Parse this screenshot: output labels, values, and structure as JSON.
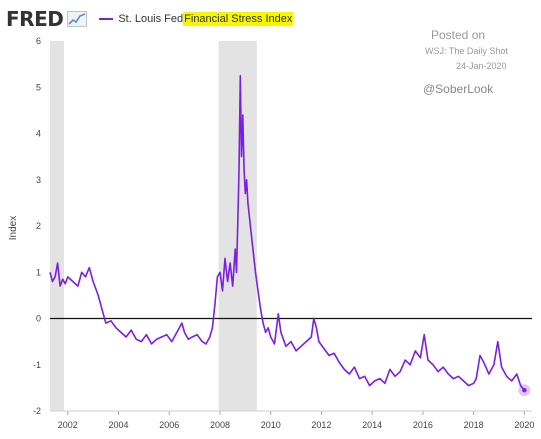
{
  "header": {
    "logo_text": "FRED",
    "logo_icon": "line-chart-icon",
    "legend_prefix": "St. Louis Fed ",
    "legend_highlight": "Financial Stress Index",
    "series_color": "#7b1fe0",
    "highlight_color": "#f7f700"
  },
  "annotations": {
    "posted": "Posted on",
    "source": "WSJ: The Daily Shot",
    "date": "24-Jan-2020",
    "handle": "@SoberLook"
  },
  "chart_data": {
    "type": "line",
    "title": "",
    "xlabel": "",
    "ylabel": "Index",
    "xlim": [
      2001.3,
      2020.3
    ],
    "ylim": [
      -2,
      6
    ],
    "xticks": [
      "2002",
      "2004",
      "2006",
      "2008",
      "2010",
      "2012",
      "2014",
      "2016",
      "2018",
      "2020"
    ],
    "yticks": [
      "-2",
      "-1",
      "0",
      "1",
      "2",
      "3",
      "4",
      "5",
      "6"
    ],
    "recessions": [
      [
        2001.3,
        2001.85
      ],
      [
        2007.95,
        2009.45
      ]
    ],
    "zero_line": 0,
    "grid": false,
    "series": [
      {
        "name": "St. Louis Fed Financial Stress Index",
        "color": "#7b1fe0",
        "x": [
          2001.3,
          2001.4,
          2001.5,
          2001.6,
          2001.7,
          2001.8,
          2001.9,
          2002.0,
          2002.2,
          2002.4,
          2002.55,
          2002.7,
          2002.85,
          2003.0,
          2003.2,
          2003.35,
          2003.5,
          2003.7,
          2003.9,
          2004.1,
          2004.3,
          2004.5,
          2004.7,
          2004.9,
          2005.1,
          2005.3,
          2005.5,
          2005.7,
          2005.9,
          2006.1,
          2006.3,
          2006.5,
          2006.6,
          2006.75,
          2006.9,
          2007.1,
          2007.3,
          2007.45,
          2007.6,
          2007.7,
          2007.8,
          2007.9,
          2008.0,
          2008.1,
          2008.2,
          2008.3,
          2008.4,
          2008.5,
          2008.6,
          2008.65,
          2008.7,
          2008.75,
          2008.8,
          2008.85,
          2008.9,
          2008.95,
          2009.0,
          2009.05,
          2009.1,
          2009.2,
          2009.3,
          2009.4,
          2009.5,
          2009.6,
          2009.7,
          2009.8,
          2009.9,
          2010.0,
          2010.15,
          2010.3,
          2010.4,
          2010.5,
          2010.6,
          2010.8,
          2011.0,
          2011.2,
          2011.4,
          2011.6,
          2011.7,
          2011.8,
          2011.9,
          2012.1,
          2012.3,
          2012.5,
          2012.7,
          2012.9,
          2013.1,
          2013.3,
          2013.5,
          2013.7,
          2013.9,
          2014.1,
          2014.3,
          2014.5,
          2014.7,
          2014.9,
          2015.1,
          2015.3,
          2015.5,
          2015.7,
          2015.9,
          2016.05,
          2016.2,
          2016.4,
          2016.6,
          2016.8,
          2017.0,
          2017.2,
          2017.4,
          2017.6,
          2017.8,
          2018.0,
          2018.1,
          2018.25,
          2018.4,
          2018.6,
          2018.8,
          2018.95,
          2019.1,
          2019.3,
          2019.5,
          2019.7,
          2019.85,
          2020.0
        ],
        "y": [
          1.0,
          0.8,
          0.9,
          1.2,
          0.7,
          0.85,
          0.75,
          0.9,
          0.8,
          0.7,
          1.0,
          0.9,
          1.1,
          0.8,
          0.5,
          0.2,
          -0.1,
          -0.05,
          -0.2,
          -0.3,
          -0.4,
          -0.25,
          -0.45,
          -0.5,
          -0.35,
          -0.55,
          -0.45,
          -0.4,
          -0.35,
          -0.5,
          -0.3,
          -0.1,
          -0.3,
          -0.45,
          -0.4,
          -0.35,
          -0.5,
          -0.55,
          -0.4,
          -0.2,
          0.3,
          0.9,
          1.0,
          0.6,
          1.3,
          0.8,
          1.2,
          0.7,
          1.5,
          1.0,
          2.0,
          3.2,
          5.25,
          3.5,
          4.4,
          3.2,
          2.7,
          3.0,
          2.5,
          2.0,
          1.5,
          1.0,
          0.6,
          0.2,
          -0.1,
          -0.3,
          -0.2,
          -0.4,
          -0.55,
          0.1,
          -0.3,
          -0.45,
          -0.6,
          -0.5,
          -0.7,
          -0.6,
          -0.5,
          -0.4,
          0.0,
          -0.2,
          -0.5,
          -0.65,
          -0.8,
          -0.75,
          -0.95,
          -1.1,
          -1.2,
          -1.05,
          -1.3,
          -1.25,
          -1.45,
          -1.35,
          -1.3,
          -1.4,
          -1.1,
          -1.25,
          -1.15,
          -0.9,
          -1.0,
          -0.7,
          -0.85,
          -0.35,
          -0.9,
          -1.0,
          -1.15,
          -1.05,
          -1.2,
          -1.3,
          -1.25,
          -1.35,
          -1.45,
          -1.4,
          -1.3,
          -0.8,
          -0.95,
          -1.2,
          -1.0,
          -0.5,
          -1.05,
          -1.25,
          -1.35,
          -1.2,
          -1.45,
          -1.55
        ]
      }
    ]
  }
}
